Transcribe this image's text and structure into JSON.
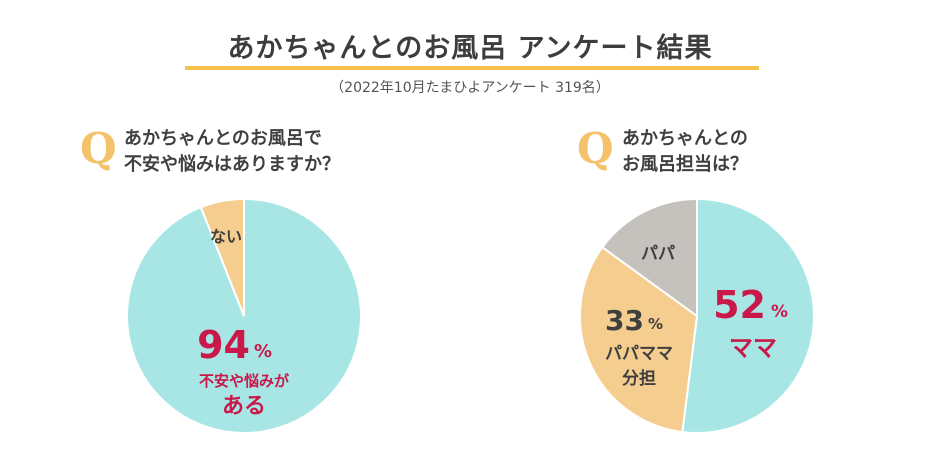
{
  "header": {
    "title": "あかちゃんとのお風呂 アンケート結果",
    "subtitle": "（2022年10月たまひよアンケート 319名）"
  },
  "colors": {
    "teal": "#a8e6e6",
    "peach": "#f5cd8e",
    "gray": "#c5c1bd",
    "accent": "#c9184a",
    "q": "#f4c26a",
    "underline": "#f5c24b",
    "dark": "#3f3f3f"
  },
  "chart_data": [
    {
      "type": "pie",
      "question_mark": "Q",
      "question_line1": "あかちゃんとのお風呂で",
      "question_line2": "不安や悩みはありますか？",
      "slices": [
        {
          "label": "不安や悩みが",
          "label2": "ある",
          "value": 94,
          "display_value": "94",
          "unit": "%",
          "color": "#a8e6e6"
        },
        {
          "label": "ない",
          "value": 6,
          "color": "#f5cd8e"
        }
      ]
    },
    {
      "type": "pie",
      "question_mark": "Q",
      "question_line1": "あかちゃんとの",
      "question_line2": "お風呂担当は？",
      "slices": [
        {
          "label": "ママ",
          "value": 52,
          "display_value": "52",
          "unit": "%",
          "color": "#a8e6e6"
        },
        {
          "label": "パパママ",
          "label2": "分担",
          "value": 33,
          "display_value": "33",
          "unit": "%",
          "color": "#f5cd8e"
        },
        {
          "label": "パパ",
          "value": 15,
          "color": "#c5c1bd"
        }
      ]
    }
  ]
}
